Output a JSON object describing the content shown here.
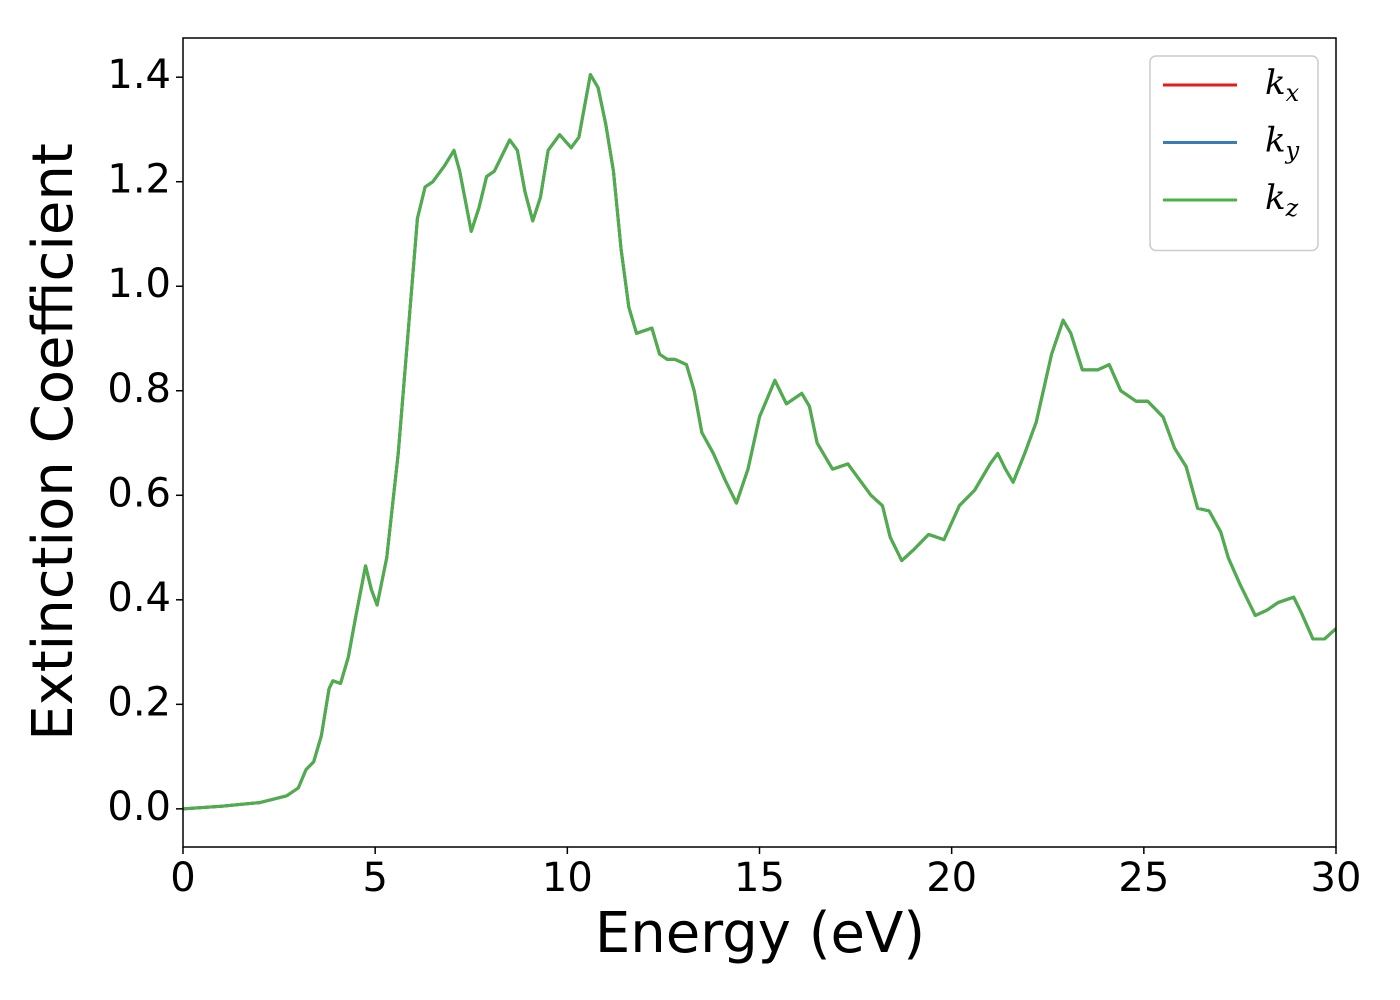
{
  "chart_data": {
    "type": "line",
    "xlabel": "Energy (eV)",
    "ylabel": "Extinction Coefficient",
    "x": [
      0,
      1,
      2,
      2.7,
      3.0,
      3.2,
      3.4,
      3.6,
      3.8,
      3.9,
      4.1,
      4.3,
      4.5,
      4.75,
      4.9,
      5.05,
      5.3,
      5.6,
      5.9,
      6.1,
      6.3,
      6.5,
      6.8,
      7.05,
      7.2,
      7.5,
      7.7,
      7.9,
      8.1,
      8.3,
      8.5,
      8.7,
      8.9,
      9.1,
      9.3,
      9.5,
      9.8,
      10.1,
      10.3,
      10.6,
      10.8,
      11.0,
      11.2,
      11.4,
      11.6,
      11.8,
      12.0,
      12.2,
      12.4,
      12.6,
      12.8,
      13.1,
      13.3,
      13.5,
      13.8,
      14.1,
      14.4,
      14.7,
      15.0,
      15.4,
      15.7,
      16.1,
      16.3,
      16.5,
      16.9,
      17.3,
      17.6,
      17.9,
      18.2,
      18.4,
      18.7,
      19.0,
      19.4,
      19.8,
      20.2,
      20.6,
      21.0,
      21.2,
      21.4,
      21.6,
      21.9,
      22.2,
      22.6,
      22.9,
      23.1,
      23.4,
      23.8,
      24.1,
      24.4,
      24.8,
      25.1,
      25.5,
      25.8,
      26.1,
      26.4,
      26.7,
      27.0,
      27.2,
      27.5,
      27.9,
      28.2,
      28.5,
      28.9,
      29.1,
      29.4,
      29.7,
      30
    ],
    "series": [
      {
        "name": "kx",
        "color": "#e41a1c",
        "values": [
          0,
          0.005,
          0.012,
          0.025,
          0.04,
          0.075,
          0.09,
          0.14,
          0.23,
          0.245,
          0.24,
          0.29,
          0.37,
          0.465,
          0.42,
          0.39,
          0.48,
          0.68,
          0.95,
          1.13,
          1.19,
          1.2,
          1.23,
          1.26,
          1.22,
          1.105,
          1.15,
          1.21,
          1.22,
          1.25,
          1.28,
          1.26,
          1.18,
          1.125,
          1.17,
          1.26,
          1.29,
          1.265,
          1.285,
          1.405,
          1.38,
          1.31,
          1.22,
          1.07,
          0.96,
          0.91,
          0.915,
          0.92,
          0.87,
          0.86,
          0.86,
          0.85,
          0.8,
          0.72,
          0.68,
          0.63,
          0.585,
          0.65,
          0.75,
          0.82,
          0.775,
          0.795,
          0.77,
          0.7,
          0.65,
          0.66,
          0.63,
          0.6,
          0.58,
          0.52,
          0.475,
          0.495,
          0.525,
          0.515,
          0.58,
          0.61,
          0.66,
          0.68,
          0.65,
          0.625,
          0.68,
          0.74,
          0.87,
          0.935,
          0.91,
          0.84,
          0.84,
          0.85,
          0.8,
          0.78,
          0.78,
          0.75,
          0.69,
          0.655,
          0.575,
          0.57,
          0.53,
          0.48,
          0.43,
          0.37,
          0.38,
          0.395,
          0.405,
          0.375,
          0.325,
          0.325,
          0.345
        ]
      },
      {
        "name": "ky",
        "color": "#377eb8",
        "values": [
          0,
          0.005,
          0.012,
          0.025,
          0.04,
          0.075,
          0.09,
          0.14,
          0.23,
          0.245,
          0.24,
          0.29,
          0.37,
          0.465,
          0.42,
          0.39,
          0.48,
          0.68,
          0.95,
          1.13,
          1.19,
          1.2,
          1.23,
          1.26,
          1.22,
          1.105,
          1.15,
          1.21,
          1.22,
          1.25,
          1.28,
          1.26,
          1.18,
          1.125,
          1.17,
          1.26,
          1.29,
          1.265,
          1.285,
          1.405,
          1.38,
          1.31,
          1.22,
          1.07,
          0.96,
          0.91,
          0.915,
          0.92,
          0.87,
          0.86,
          0.86,
          0.85,
          0.8,
          0.72,
          0.68,
          0.63,
          0.585,
          0.65,
          0.75,
          0.82,
          0.775,
          0.795,
          0.77,
          0.7,
          0.65,
          0.66,
          0.63,
          0.6,
          0.58,
          0.52,
          0.475,
          0.495,
          0.525,
          0.515,
          0.58,
          0.61,
          0.66,
          0.68,
          0.65,
          0.625,
          0.68,
          0.74,
          0.87,
          0.935,
          0.91,
          0.84,
          0.84,
          0.85,
          0.8,
          0.78,
          0.78,
          0.75,
          0.69,
          0.655,
          0.575,
          0.57,
          0.53,
          0.48,
          0.43,
          0.37,
          0.38,
          0.395,
          0.405,
          0.375,
          0.325,
          0.325,
          0.345
        ]
      },
      {
        "name": "kz",
        "color": "#4daf4a",
        "values": [
          0,
          0.005,
          0.012,
          0.025,
          0.04,
          0.075,
          0.09,
          0.14,
          0.23,
          0.245,
          0.24,
          0.29,
          0.37,
          0.465,
          0.42,
          0.39,
          0.48,
          0.68,
          0.95,
          1.13,
          1.19,
          1.2,
          1.23,
          1.26,
          1.22,
          1.105,
          1.15,
          1.21,
          1.22,
          1.25,
          1.28,
          1.26,
          1.18,
          1.125,
          1.17,
          1.26,
          1.29,
          1.265,
          1.285,
          1.405,
          1.38,
          1.31,
          1.22,
          1.07,
          0.96,
          0.91,
          0.915,
          0.92,
          0.87,
          0.86,
          0.86,
          0.85,
          0.8,
          0.72,
          0.68,
          0.63,
          0.585,
          0.65,
          0.75,
          0.82,
          0.775,
          0.795,
          0.77,
          0.7,
          0.65,
          0.66,
          0.63,
          0.6,
          0.58,
          0.52,
          0.475,
          0.495,
          0.525,
          0.515,
          0.58,
          0.61,
          0.66,
          0.68,
          0.65,
          0.625,
          0.68,
          0.74,
          0.87,
          0.935,
          0.91,
          0.84,
          0.84,
          0.85,
          0.8,
          0.78,
          0.78,
          0.75,
          0.69,
          0.655,
          0.575,
          0.57,
          0.53,
          0.48,
          0.43,
          0.37,
          0.38,
          0.395,
          0.405,
          0.375,
          0.325,
          0.325,
          0.345
        ]
      }
    ],
    "xlim": [
      0,
      30
    ],
    "xticks": [
      0,
      5,
      10,
      15,
      20,
      25,
      30
    ],
    "ylim": [
      -0.073,
      1.475
    ],
    "yticks": [
      {
        "value": 0,
        "label": "0.0"
      },
      0.2,
      0.4,
      0.6,
      0.8,
      {
        "value": 1,
        "label": "1.0"
      },
      1.2,
      1.4
    ],
    "grid": false,
    "legend": "upper right"
  }
}
